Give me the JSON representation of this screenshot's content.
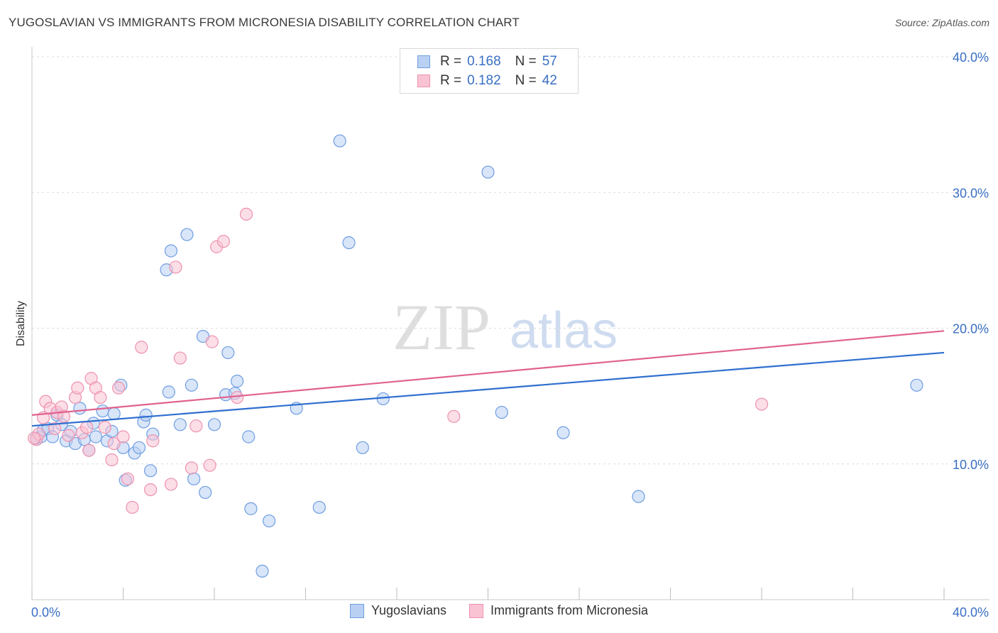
{
  "title": "YUGOSLAVIAN VS IMMIGRANTS FROM MICRONESIA DISABILITY CORRELATION CHART",
  "source": "Source: ZipAtlas.com",
  "watermark": {
    "zip": "ZIP",
    "atlas": "atlas"
  },
  "legend_top": [
    {
      "r_label": "R =",
      "r_value": "0.168",
      "n_label": "N =",
      "n_value": "57"
    },
    {
      "r_label": "R =",
      "r_value": "0.182",
      "n_label": "N =",
      "n_value": "42"
    }
  ],
  "colors": {
    "blue_fill": "#b9d0f3",
    "blue_stroke": "#6f9ee2",
    "blue_line": "#2f6fcf",
    "pink_fill": "#f9c3d3",
    "pink_stroke": "#ee92ae",
    "pink_line": "#e0628f",
    "axis_label": "#3a6fc4",
    "grid": "#dcdcdc"
  },
  "chart_data": {
    "type": "scatter",
    "xlabel": "",
    "ylabel": "Disability",
    "xlim": [
      0,
      40
    ],
    "ylim": [
      0,
      40
    ],
    "x_tick_labels": [
      "0.0%",
      "40.0%"
    ],
    "y_ticks": [
      10,
      20,
      30,
      40
    ],
    "y_tick_labels": [
      "10.0%",
      "20.0%",
      "30.0%",
      "40.0%"
    ],
    "grid": true,
    "legend": "top-center and bottom",
    "series": [
      {
        "name": "Yugoslavians",
        "color": "blue",
        "trend": {
          "x": [
            0,
            40
          ],
          "y": [
            12.8,
            18.2
          ]
        },
        "points": [
          [
            0.2,
            11.9
          ],
          [
            0.4,
            12.0
          ],
          [
            0.5,
            12.5
          ],
          [
            0.7,
            12.6
          ],
          [
            0.9,
            12.0
          ],
          [
            1.1,
            13.6
          ],
          [
            1.3,
            12.9
          ],
          [
            1.5,
            11.7
          ],
          [
            1.7,
            12.4
          ],
          [
            1.9,
            11.5
          ],
          [
            2.1,
            14.1
          ],
          [
            2.3,
            11.8
          ],
          [
            2.5,
            11.0
          ],
          [
            2.7,
            13.0
          ],
          [
            2.8,
            12.0
          ],
          [
            3.1,
            13.9
          ],
          [
            3.3,
            11.7
          ],
          [
            3.5,
            12.4
          ],
          [
            3.6,
            13.7
          ],
          [
            3.9,
            15.8
          ],
          [
            4.0,
            11.2
          ],
          [
            4.1,
            8.8
          ],
          [
            4.5,
            10.8
          ],
          [
            4.7,
            11.2
          ],
          [
            4.9,
            13.1
          ],
          [
            5.0,
            13.6
          ],
          [
            5.2,
            9.5
          ],
          [
            5.3,
            12.2
          ],
          [
            5.9,
            24.3
          ],
          [
            6.0,
            15.3
          ],
          [
            6.1,
            25.7
          ],
          [
            6.5,
            12.9
          ],
          [
            6.8,
            26.9
          ],
          [
            7.0,
            15.8
          ],
          [
            7.1,
            8.9
          ],
          [
            7.5,
            19.4
          ],
          [
            7.6,
            7.9
          ],
          [
            8.0,
            12.9
          ],
          [
            8.5,
            15.1
          ],
          [
            8.6,
            18.2
          ],
          [
            8.9,
            15.2
          ],
          [
            9.0,
            16.1
          ],
          [
            9.5,
            12.0
          ],
          [
            9.6,
            6.7
          ],
          [
            10.1,
            2.1
          ],
          [
            10.4,
            5.8
          ],
          [
            11.6,
            14.1
          ],
          [
            12.6,
            6.8
          ],
          [
            13.5,
            33.8
          ],
          [
            13.9,
            26.3
          ],
          [
            14.5,
            11.2
          ],
          [
            15.4,
            14.8
          ],
          [
            20.0,
            31.5
          ],
          [
            20.6,
            13.8
          ],
          [
            23.3,
            12.3
          ],
          [
            26.6,
            7.6
          ],
          [
            38.8,
            15.8
          ]
        ]
      },
      {
        "name": "Immigrants from Micronesia",
        "color": "pink",
        "trend": {
          "x": [
            0,
            40
          ],
          "y": [
            13.6,
            19.8
          ]
        },
        "points": [
          [
            0.2,
            11.8
          ],
          [
            0.3,
            12.2
          ],
          [
            0.5,
            13.4
          ],
          [
            0.6,
            14.6
          ],
          [
            0.8,
            14.1
          ],
          [
            1.0,
            12.6
          ],
          [
            1.1,
            13.8
          ],
          [
            1.3,
            14.2
          ],
          [
            1.4,
            13.5
          ],
          [
            1.6,
            12.1
          ],
          [
            1.9,
            14.9
          ],
          [
            2.0,
            15.6
          ],
          [
            2.2,
            12.3
          ],
          [
            2.4,
            12.7
          ],
          [
            2.5,
            11.0
          ],
          [
            2.6,
            16.3
          ],
          [
            2.8,
            15.6
          ],
          [
            3.0,
            14.9
          ],
          [
            3.2,
            12.7
          ],
          [
            3.5,
            10.3
          ],
          [
            3.6,
            11.5
          ],
          [
            3.8,
            15.6
          ],
          [
            4.0,
            12.0
          ],
          [
            4.2,
            8.9
          ],
          [
            4.4,
            6.8
          ],
          [
            4.8,
            18.6
          ],
          [
            5.2,
            8.1
          ],
          [
            5.3,
            11.7
          ],
          [
            6.1,
            8.5
          ],
          [
            6.3,
            24.5
          ],
          [
            6.5,
            17.8
          ],
          [
            7.0,
            9.7
          ],
          [
            7.2,
            12.8
          ],
          [
            7.8,
            9.9
          ],
          [
            7.9,
            19.0
          ],
          [
            8.1,
            26.0
          ],
          [
            8.4,
            26.4
          ],
          [
            9.0,
            14.9
          ],
          [
            9.4,
            28.4
          ],
          [
            18.5,
            13.5
          ],
          [
            32.0,
            14.4
          ],
          [
            0.1,
            11.9
          ]
        ]
      }
    ]
  },
  "bottom_legend": [
    "Yugoslavians",
    "Immigrants from Micronesia"
  ]
}
